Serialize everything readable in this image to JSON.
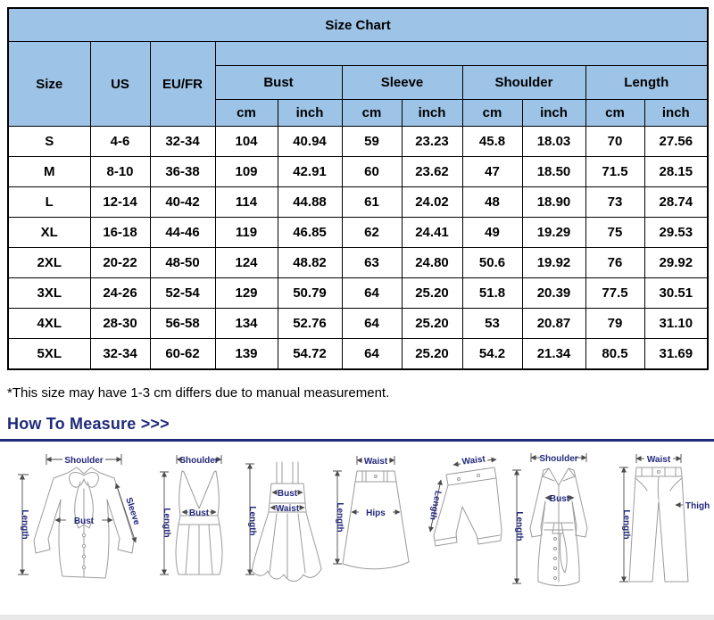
{
  "table": {
    "title": "Size Chart",
    "col_headers": [
      "Size",
      "US",
      "EU/FR"
    ],
    "groups": [
      "Bust",
      "Sleeve",
      "Shoulder",
      "Length"
    ],
    "units": [
      "cm",
      "inch"
    ],
    "rows": [
      [
        "S",
        "4-6",
        "32-34",
        "104",
        "40.94",
        "59",
        "23.23",
        "45.8",
        "18.03",
        "70",
        "27.56"
      ],
      [
        "M",
        "8-10",
        "36-38",
        "109",
        "42.91",
        "60",
        "23.62",
        "47",
        "18.50",
        "71.5",
        "28.15"
      ],
      [
        "L",
        "12-14",
        "40-42",
        "114",
        "44.88",
        "61",
        "24.02",
        "48",
        "18.90",
        "73",
        "28.74"
      ],
      [
        "XL",
        "16-18",
        "44-46",
        "119",
        "46.85",
        "62",
        "24.41",
        "49",
        "19.29",
        "75",
        "29.53"
      ],
      [
        "2XL",
        "20-22",
        "48-50",
        "124",
        "48.82",
        "63",
        "24.80",
        "50.6",
        "19.92",
        "76",
        "29.92"
      ],
      [
        "3XL",
        "24-26",
        "52-54",
        "129",
        "50.79",
        "64",
        "25.20",
        "51.8",
        "20.39",
        "77.5",
        "30.51"
      ],
      [
        "4XL",
        "28-30",
        "56-58",
        "134",
        "52.76",
        "64",
        "25.20",
        "53",
        "20.87",
        "79",
        "31.10"
      ],
      [
        "5XL",
        "32-34",
        "60-62",
        "139",
        "54.72",
        "64",
        "25.20",
        "54.2",
        "21.34",
        "80.5",
        "31.69"
      ]
    ]
  },
  "footnote": "*This size may have 1-3 cm differs due to manual measurement.",
  "measure": {
    "heading": "How To Measure >>>",
    "diagrams": [
      {
        "id": "blouse",
        "labels": {
          "top": "Shoulder",
          "left": "Length",
          "bust": "Bust",
          "sleeve": "Sleeve"
        }
      },
      {
        "id": "vneck-top",
        "labels": {
          "top": "Shoulder",
          "left": "Length",
          "bust": "Bust"
        }
      },
      {
        "id": "slip-dress",
        "labels": {
          "left": "Length",
          "bust": "Bust",
          "waist": "Waist"
        }
      },
      {
        "id": "skirt",
        "labels": {
          "top": "Waist",
          "left": "Length",
          "hips": "Hips"
        }
      },
      {
        "id": "shorts",
        "labels": {
          "top": "Waist",
          "left": "Length"
        }
      },
      {
        "id": "coat",
        "labels": {
          "top": "Shoulder",
          "left": "Length",
          "bust": "Bust"
        }
      },
      {
        "id": "pants",
        "labels": {
          "top": "Waist",
          "left": "Length",
          "thigh": "Thigh"
        }
      }
    ]
  },
  "colors": {
    "header_blue": "#9DC3E6",
    "heading_navy": "#1F2B7B",
    "label_navy": "#23297D",
    "sketch_gray": "#9B9B9B"
  }
}
